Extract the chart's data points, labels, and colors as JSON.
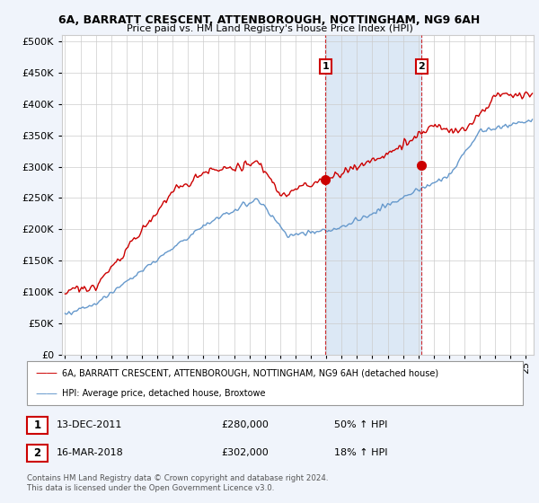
{
  "title1": "6A, BARRATT CRESCENT, ATTENBOROUGH, NOTTINGHAM, NG9 6AH",
  "title2": "Price paid vs. HM Land Registry's House Price Index (HPI)",
  "sale1_x": 2011.96,
  "sale1_price": 280000,
  "sale2_x": 2018.21,
  "sale2_price": 302000,
  "hpi_color": "#6699cc",
  "price_color": "#cc0000",
  "span_color": "#dce8f5",
  "vline_color": "#cc0000",
  "legend_label1": "6A, BARRATT CRESCENT, ATTENBOROUGH, NOTTINGHAM, NG9 6AH (detached house)",
  "legend_label2": "HPI: Average price, detached house, Broxtowe",
  "footer": "Contains HM Land Registry data © Crown copyright and database right 2024.\nThis data is licensed under the Open Government Licence v3.0.",
  "table_row1": [
    "1",
    "13-DEC-2011",
    "£280,000",
    "50% ↑ HPI"
  ],
  "table_row2": [
    "2",
    "16-MAR-2018",
    "£302,000",
    "18% ↑ HPI"
  ],
  "ylim": [
    0,
    510000
  ],
  "yticks": [
    0,
    50000,
    100000,
    150000,
    200000,
    250000,
    300000,
    350000,
    400000,
    450000,
    500000
  ],
  "xlim_left": 1994.8,
  "xlim_right": 2025.5,
  "bg_color": "#f0f4fb",
  "plot_bg": "#ffffff",
  "grid_color": "#cccccc"
}
